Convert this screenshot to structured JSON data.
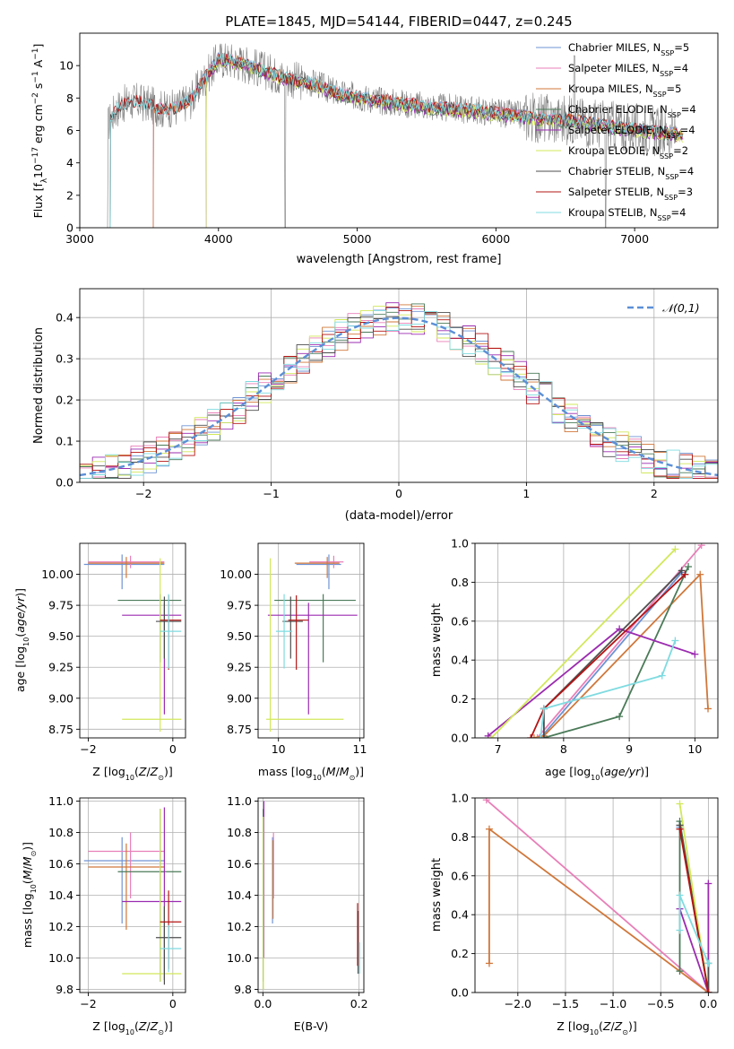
{
  "figure_title": "PLATE=1845, MJD=54144, FIBERID=0447, z=0.245",
  "colors": {
    "chabrier_miles": "#6f93d4",
    "salpeter_miles": "#e87fb8",
    "kroupa_miles": "#d0773a",
    "chabrier_elodie": "#4a7a58",
    "salpeter_elodie": "#9b2bb0",
    "kroupa_elodie": "#d2e85a",
    "chabrier_stelib": "#4d4d4d",
    "salpeter_stelib": "#b51414",
    "kroupa_stelib": "#7fdbe0",
    "data": "#808080",
    "gaussian": "#5b8fd6"
  },
  "chart_data": [
    {
      "id": "spectrum",
      "type": "line",
      "title": "PLATE=1845, MJD=54144, FIBERID=0447, z=0.245",
      "xlabel": "wavelength [Angstrom, rest frame]",
      "ylabel": "Flux [f_λ 10^-17 erg cm^-2 s^-1 A^-1]",
      "xlim": [
        3000,
        7600
      ],
      "ylim": [
        0,
        12
      ],
      "xticks": [
        3000,
        4000,
        5000,
        6000,
        7000
      ],
      "yticks": [
        0,
        2,
        4,
        6,
        8,
        10
      ],
      "legend_position": "top-right",
      "legend": [
        {
          "label": "Chabrier MILES, N",
          "sub": "SSP",
          "eq": "=5",
          "color": "#6f93d4"
        },
        {
          "label": "Salpeter MILES, N",
          "sub": "SSP",
          "eq": "=4",
          "color": "#e87fb8"
        },
        {
          "label": "Kroupa MILES, N",
          "sub": "SSP",
          "eq": "=5",
          "color": "#d0773a"
        },
        {
          "label": "Chabrier ELODIE, N",
          "sub": "SSP",
          "eq": "=4",
          "color": "#4a7a58"
        },
        {
          "label": "Salpeter ELODIE, N",
          "sub": "SSP",
          "eq": "=4",
          "color": "#9b2bb0"
        },
        {
          "label": "Kroupa ELODIE, N",
          "sub": "SSP",
          "eq": "=2",
          "color": "#d2e85a"
        },
        {
          "label": "Chabrier STELIB, N",
          "sub": "SSP",
          "eq": "=4",
          "color": "#4d4d4d"
        },
        {
          "label": "Salpeter STELIB, N",
          "sub": "SSP",
          "eq": "=3",
          "color": "#b51414"
        },
        {
          "label": "Kroupa STELIB, N",
          "sub": "SSP",
          "eq": "=4",
          "color": "#7fdbe0"
        }
      ],
      "data_envelope": {
        "x": [
          3200,
          3250,
          3300,
          3400,
          3500,
          3600,
          3700,
          3800,
          3900,
          4000,
          4100,
          4200,
          4300,
          4400,
          4500,
          4600,
          4700,
          4800,
          4900,
          5000,
          5200,
          5400,
          5600,
          5800,
          6000,
          6200,
          6400,
          6600,
          6800,
          7000,
          7200,
          7300
        ],
        "y": [
          6.3,
          7.2,
          7.6,
          7.8,
          7.6,
          7.3,
          7.4,
          7.9,
          9.2,
          10.4,
          10.3,
          10.1,
          9.8,
          9.5,
          9.2,
          9.0,
          8.9,
          8.5,
          8.2,
          8.1,
          7.8,
          7.6,
          7.4,
          7.3,
          7.1,
          6.9,
          6.7,
          6.6,
          6.3,
          6.1,
          5.9,
          5.8
        ]
      },
      "model_cutoffs": {
        "miles": 3530,
        "elodie": 3910,
        "stelib": 3220
      }
    },
    {
      "id": "residuals",
      "type": "step",
      "xlabel": "(data-model)/error",
      "ylabel": "Normed distribution",
      "xlim": [
        -2.5,
        2.5
      ],
      "ylim": [
        0,
        0.47
      ],
      "xticks": [
        -2,
        -1,
        0,
        1,
        2
      ],
      "yticks": [
        0.0,
        0.1,
        0.2,
        0.3,
        0.4
      ],
      "legend_position": "top-right",
      "gaussian_label": "𝒩(0,1)",
      "gaussian": {
        "mu": 0,
        "sigma": 1
      }
    },
    {
      "id": "age_vs_Z",
      "type": "errorbar",
      "xlabel": "Z [log10(Z/Z⊙)]",
      "ylabel": "age [log10(age/yr)]",
      "xlim": [
        -2.2,
        0.3
      ],
      "ylim": [
        8.68,
        10.25
      ],
      "xticks": [
        -2,
        0
      ],
      "yticks": [
        8.75,
        9.0,
        9.25,
        9.5,
        9.75,
        10.0
      ],
      "points": [
        {
          "series": "chabrier_miles",
          "x": -1.2,
          "xerr": [
            0.9,
            1.0
          ],
          "y": 10.08,
          "yerr": [
            0.2,
            0.08
          ]
        },
        {
          "series": "salpeter_miles",
          "x": -1.0,
          "xerr": [
            1.0,
            0.8
          ],
          "y": 10.1,
          "yerr": [
            0.05,
            0.05
          ]
        },
        {
          "series": "kroupa_miles",
          "x": -1.1,
          "xerr": [
            0.9,
            0.9
          ],
          "y": 10.09,
          "yerr": [
            0.12,
            0.05
          ]
        },
        {
          "series": "chabrier_elodie",
          "x": -0.3,
          "xerr": [
            1.0,
            0.5
          ],
          "y": 9.79,
          "yerr": [
            0.5,
            0.05
          ]
        },
        {
          "series": "salpeter_elodie",
          "x": -0.2,
          "xerr": [
            1.0,
            0.4
          ],
          "y": 9.67,
          "yerr": [
            0.8,
            0.1
          ]
        },
        {
          "series": "kroupa_elodie",
          "x": -0.3,
          "xerr": [
            0.9,
            0.5
          ],
          "y": 8.83,
          "yerr": [
            0.1,
            1.3
          ]
        },
        {
          "series": "chabrier_stelib",
          "x": -0.2,
          "xerr": [
            0.2,
            0.4
          ],
          "y": 9.62,
          "yerr": [
            0.3,
            0.2
          ]
        },
        {
          "series": "salpeter_stelib",
          "x": -0.1,
          "xerr": [
            0.2,
            0.3
          ],
          "y": 9.63,
          "yerr": [
            0.4,
            0.2
          ]
        },
        {
          "series": "kroupa_stelib",
          "x": -0.1,
          "xerr": [
            0.2,
            0.3
          ],
          "y": 9.54,
          "yerr": [
            0.3,
            0.3
          ]
        }
      ]
    },
    {
      "id": "age_vs_mass",
      "type": "errorbar",
      "xlabel": "mass [log10(M/M⊙)]",
      "ylabel": "",
      "xlim": [
        9.75,
        11.05
      ],
      "ylim": [
        8.68,
        10.25
      ],
      "xticks": [
        10,
        11
      ],
      "yticks": [
        8.75,
        9.0,
        9.25,
        9.5,
        9.75,
        10.0
      ],
      "points": [
        {
          "series": "chabrier_miles",
          "x": 10.62,
          "xerr": [
            0.4,
            0.15
          ],
          "y": 10.08,
          "yerr": [
            0.2,
            0.08
          ]
        },
        {
          "series": "salpeter_miles",
          "x": 10.68,
          "xerr": [
            0.3,
            0.12
          ],
          "y": 10.1,
          "yerr": [
            0.05,
            0.05
          ]
        },
        {
          "series": "kroupa_miles",
          "x": 10.6,
          "xerr": [
            0.4,
            0.15
          ],
          "y": 10.09,
          "yerr": [
            0.12,
            0.05
          ]
        },
        {
          "series": "chabrier_elodie",
          "x": 10.55,
          "xerr": [
            0.6,
            0.4
          ],
          "y": 9.79,
          "yerr": [
            0.5,
            0.05
          ]
        },
        {
          "series": "salpeter_elodie",
          "x": 10.37,
          "xerr": [
            0.5,
            0.6
          ],
          "y": 9.67,
          "yerr": [
            0.8,
            0.1
          ]
        },
        {
          "series": "kroupa_elodie",
          "x": 9.9,
          "xerr": [
            0.05,
            0.9
          ],
          "y": 8.83,
          "yerr": [
            0.1,
            1.3
          ]
        },
        {
          "series": "chabrier_stelib",
          "x": 10.15,
          "xerr": [
            0.1,
            0.15
          ],
          "y": 9.62,
          "yerr": [
            0.3,
            0.2
          ]
        },
        {
          "series": "salpeter_stelib",
          "x": 10.22,
          "xerr": [
            0.1,
            0.15
          ],
          "y": 9.63,
          "yerr": [
            0.4,
            0.2
          ]
        },
        {
          "series": "kroupa_stelib",
          "x": 10.07,
          "xerr": [
            0.1,
            0.1
          ],
          "y": 9.54,
          "yerr": [
            0.3,
            0.3
          ]
        }
      ]
    },
    {
      "id": "massweight_vs_age",
      "type": "line",
      "xlabel": "age [log10(age/yr)]",
      "ylabel": "mass weight",
      "xlim": [
        6.65,
        10.35
      ],
      "ylim": [
        0,
        1
      ],
      "xticks": [
        7,
        8,
        9,
        10
      ],
      "yticks": [
        0.0,
        0.2,
        0.4,
        0.6,
        0.8,
        1.0
      ],
      "series": [
        {
          "series": "chabrier_miles",
          "x": [
            7.65,
            9.8
          ],
          "y": [
            0.0,
            0.85
          ]
        },
        {
          "series": "salpeter_miles",
          "x": [
            7.6,
            10.1
          ],
          "y": [
            0.0,
            0.99
          ]
        },
        {
          "series": "kroupa_miles",
          "x": [
            7.55,
            7.7,
            10.08,
            10.2
          ],
          "y": [
            0.0,
            0.01,
            0.84,
            0.15
          ]
        },
        {
          "series": "chabrier_elodie",
          "x": [
            7.7,
            8.85,
            9.9
          ],
          "y": [
            0.0,
            0.11,
            0.88
          ]
        },
        {
          "series": "salpeter_elodie",
          "x": [
            6.85,
            8.85,
            10.0
          ],
          "y": [
            0.01,
            0.56,
            0.43
          ]
        },
        {
          "series": "kroupa_elodie",
          "x": [
            6.9,
            9.7
          ],
          "y": [
            0.0,
            0.97
          ]
        },
        {
          "series": "chabrier_stelib",
          "x": [
            7.7,
            7.7,
            9.8
          ],
          "y": [
            0.0,
            0.15,
            0.86
          ]
        },
        {
          "series": "salpeter_stelib",
          "x": [
            7.5,
            7.7,
            9.85
          ],
          "y": [
            0.0,
            0.15,
            0.84
          ]
        },
        {
          "series": "kroupa_stelib",
          "x": [
            7.65,
            7.7,
            9.5,
            9.7
          ],
          "y": [
            0.0,
            0.15,
            0.32,
            0.5
          ]
        }
      ]
    },
    {
      "id": "mass_vs_Z",
      "type": "errorbar",
      "xlabel": "Z [log10(Z/Z⊙)]",
      "ylabel": "mass [log10(M/M⊙)]",
      "xlim": [
        -2.2,
        0.3
      ],
      "ylim": [
        9.78,
        11.02
      ],
      "xticks": [
        -2,
        0
      ],
      "yticks": [
        9.8,
        10.0,
        10.2,
        10.4,
        10.6,
        10.8,
        11.0
      ],
      "points": [
        {
          "series": "chabrier_miles",
          "x": -1.2,
          "xerr": [
            0.9,
            1.0
          ],
          "y": 10.62,
          "yerr": [
            0.4,
            0.15
          ]
        },
        {
          "series": "salpeter_miles",
          "x": -1.0,
          "xerr": [
            1.0,
            0.8
          ],
          "y": 10.68,
          "yerr": [
            0.3,
            0.12
          ]
        },
        {
          "series": "kroupa_miles",
          "x": -1.1,
          "xerr": [
            0.9,
            0.9
          ],
          "y": 10.58,
          "yerr": [
            0.4,
            0.15
          ]
        },
        {
          "series": "chabrier_elodie",
          "x": -0.3,
          "xerr": [
            1.0,
            0.5
          ],
          "y": 10.55,
          "yerr": [
            0.7,
            0.4
          ]
        },
        {
          "series": "salpeter_elodie",
          "x": -0.2,
          "xerr": [
            1.0,
            0.4
          ],
          "y": 10.36,
          "yerr": [
            0.5,
            0.6
          ]
        },
        {
          "series": "kroupa_elodie",
          "x": -0.3,
          "xerr": [
            0.9,
            0.5
          ],
          "y": 9.9,
          "yerr": [
            0.05,
            1.05
          ]
        },
        {
          "series": "chabrier_stelib",
          "x": -0.2,
          "xerr": [
            0.2,
            0.4
          ],
          "y": 10.13,
          "yerr": [
            0.3,
            0.2
          ]
        },
        {
          "series": "salpeter_stelib",
          "x": -0.1,
          "xerr": [
            0.2,
            0.3
          ],
          "y": 10.23,
          "yerr": [
            0.3,
            0.2
          ]
        },
        {
          "series": "kroupa_stelib",
          "x": -0.1,
          "xerr": [
            0.2,
            0.3
          ],
          "y": 10.06,
          "yerr": [
            0.15,
            0.15
          ]
        }
      ]
    },
    {
      "id": "mass_vs_ebv",
      "type": "errorbar",
      "xlabel": "E(B-V)",
      "ylabel": "",
      "xlim": [
        -0.01,
        0.21
      ],
      "ylim": [
        9.78,
        11.02
      ],
      "xticks": [
        0.0,
        0.2
      ],
      "yticks": [
        9.8,
        10.0,
        10.2,
        10.4,
        10.6,
        10.8,
        11.0
      ],
      "points": [
        {
          "series": "chabrier_miles",
          "x": 0.02,
          "y": 10.62,
          "yerr": [
            0.4,
            0.15
          ]
        },
        {
          "series": "salpeter_miles",
          "x": 0.022,
          "y": 10.68,
          "yerr": [
            0.3,
            0.12
          ]
        },
        {
          "series": "kroupa_miles",
          "x": 0.021,
          "y": 10.55,
          "yerr": [
            0.3,
            0.2
          ]
        },
        {
          "series": "chabrier_elodie",
          "x": 0.001,
          "y": 10.55,
          "yerr": [
            0.7,
            0.4
          ]
        },
        {
          "series": "salpeter_elodie",
          "x": 0.002,
          "y": 10.6,
          "yerr": [
            0.6,
            0.4
          ]
        },
        {
          "series": "kroupa_elodie",
          "x": 0.001,
          "y": 10.3,
          "yerr": [
            0.5,
            0.6
          ]
        },
        {
          "series": "chabrier_stelib",
          "x": 0.198,
          "y": 10.1,
          "yerr": [
            0.2,
            0.2
          ]
        },
        {
          "series": "salpeter_stelib",
          "x": 0.197,
          "y": 10.15,
          "yerr": [
            0.2,
            0.2
          ]
        },
        {
          "series": "kroupa_stelib",
          "x": 0.201,
          "y": 10.0,
          "yerr": [
            0.1,
            0.1
          ]
        }
      ]
    },
    {
      "id": "massweight_vs_Z",
      "type": "line",
      "xlabel": "Z [log10(Z/Z⊙)]",
      "ylabel": "mass weight",
      "xlim": [
        -2.45,
        0.1
      ],
      "ylim": [
        0,
        1
      ],
      "xticks": [
        -2.0,
        -1.5,
        -1.0,
        -0.5,
        0.0
      ],
      "yticks": [
        0.0,
        0.2,
        0.4,
        0.6,
        0.8,
        1.0
      ],
      "series": [
        {
          "series": "chabrier_miles",
          "x": [
            -0.3,
            0.0
          ],
          "y": [
            0.85,
            0.0
          ]
        },
        {
          "series": "salpeter_miles",
          "x": [
            -2.33,
            0.0
          ],
          "y": [
            0.99,
            0.0
          ]
        },
        {
          "series": "kroupa_miles",
          "x": [
            -2.3,
            -2.3,
            0.0
          ],
          "y": [
            0.15,
            0.84,
            0.0
          ]
        },
        {
          "series": "chabrier_elodie",
          "x": [
            -0.3,
            -0.3,
            0.0
          ],
          "y": [
            0.11,
            0.88,
            0.0
          ]
        },
        {
          "series": "salpeter_elodie",
          "x": [
            -0.3,
            0.0,
            0.0
          ],
          "y": [
            0.43,
            0.0,
            0.56
          ]
        },
        {
          "series": "kroupa_elodie",
          "x": [
            -0.3,
            0.0
          ],
          "y": [
            0.97,
            0.0
          ]
        },
        {
          "series": "chabrier_stelib",
          "x": [
            -0.3,
            0.0,
            0.0
          ],
          "y": [
            0.86,
            0.0,
            0.15
          ]
        },
        {
          "series": "salpeter_stelib",
          "x": [
            -0.3,
            0.0
          ],
          "y": [
            0.84,
            0.0
          ]
        },
        {
          "series": "kroupa_stelib",
          "x": [
            -0.3,
            -0.3,
            0.0
          ],
          "y": [
            0.32,
            0.5,
            0.15
          ]
        }
      ]
    }
  ]
}
